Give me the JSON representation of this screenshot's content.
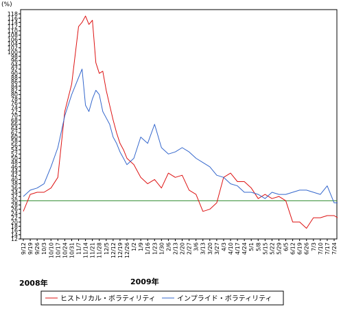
{
  "chart_data": {
    "type": "line",
    "unit_label": "(%)",
    "ylim": [
      12,
      120
    ],
    "y_ticks": [
      12,
      14,
      16,
      18,
      20,
      22,
      24,
      26,
      28,
      30,
      32,
      34,
      36,
      38,
      40,
      42,
      44,
      46,
      48,
      50,
      52,
      54,
      56,
      58,
      60,
      62,
      64,
      66,
      68,
      70,
      72,
      74,
      76,
      78,
      80,
      82,
      84,
      86,
      88,
      90,
      92,
      94,
      96,
      98,
      100,
      102,
      104,
      106,
      108,
      110,
      112,
      114,
      116,
      118
    ],
    "x_tick_labels": [
      "9/12",
      "9/19",
      "9/26",
      "10/3",
      "10/10",
      "10/17",
      "10/24",
      "10/31",
      "11/7",
      "11/14",
      "11/21",
      "11/28",
      "12/5",
      "12/12",
      "12/19",
      "12/26",
      "1/2",
      "1/9",
      "1/16",
      "1/23",
      "1/30",
      "2/6",
      "2/13",
      "2/20",
      "2/27",
      "3/6",
      "3/13",
      "3/20",
      "3/27",
      "4/3",
      "4/10",
      "4/17",
      "4/24",
      "5/1",
      "5/8",
      "5/15",
      "5/22",
      "5/29",
      "6/5",
      "6/12",
      "6/19",
      "6/26",
      "7/3",
      "7/10",
      "7/17",
      "7/24"
    ],
    "year_labels": [
      "2008年",
      "2009年"
    ],
    "reference_line": {
      "value": 30,
      "color": "#2e8b2e"
    },
    "grid": false,
    "series": [
      {
        "name": "ヒストリカル・ボラティリティ",
        "color": "#dd1111",
        "x": [
          0,
          1,
          2,
          3,
          4,
          5,
          6,
          7,
          8,
          8.5,
          9,
          9.5,
          10,
          10.5,
          11,
          11.5,
          12,
          12.5,
          13,
          13.5,
          14,
          14.5,
          15,
          16,
          17,
          18,
          19,
          20,
          21,
          22,
          23,
          24,
          25,
          26,
          27,
          28,
          29,
          30,
          31,
          32,
          33,
          34,
          35,
          36,
          37,
          38,
          39,
          40,
          41,
          42,
          43,
          44,
          45,
          45.5
        ],
        "values": [
          25,
          33,
          34,
          34,
          36,
          41,
          72,
          85,
          112,
          114,
          117,
          113,
          115,
          95,
          90,
          91,
          82,
          75,
          68,
          62,
          57,
          54,
          50,
          47,
          41,
          38,
          40,
          36,
          43,
          41,
          42,
          35,
          33,
          25,
          26,
          29,
          41,
          43,
          39,
          39,
          36,
          31,
          33,
          31,
          32,
          30,
          20,
          20,
          17,
          22,
          22,
          23,
          23,
          22
        ]
      },
      {
        "name": "インプライド・ボラティリティ",
        "color": "#3366cc",
        "x": [
          0,
          1,
          2,
          3,
          4,
          5,
          6,
          7,
          8,
          8.5,
          9,
          9.5,
          10,
          10.5,
          11,
          11.5,
          12,
          12.5,
          13,
          13.5,
          14,
          14.5,
          15,
          16,
          17,
          18,
          19,
          20,
          21,
          22,
          23,
          24,
          25,
          26,
          27,
          28,
          29,
          30,
          31,
          32,
          33,
          34,
          35,
          36,
          37,
          38,
          39,
          40,
          41,
          42,
          43,
          44,
          45,
          45.5
        ],
        "values": [
          32,
          35,
          36,
          38,
          46,
          55,
          70,
          80,
          88,
          92,
          75,
          72,
          78,
          82,
          80,
          72,
          69,
          66,
          60,
          57,
          53,
          50,
          47,
          50,
          60,
          57,
          66,
          55,
          52,
          53,
          55,
          53,
          50,
          48,
          46,
          42,
          41,
          38,
          37,
          34,
          34,
          33,
          31,
          34,
          33,
          33,
          34,
          35,
          35,
          34,
          33,
          37,
          29,
          29
        ]
      }
    ],
    "legend": {
      "position": "bottom"
    }
  }
}
